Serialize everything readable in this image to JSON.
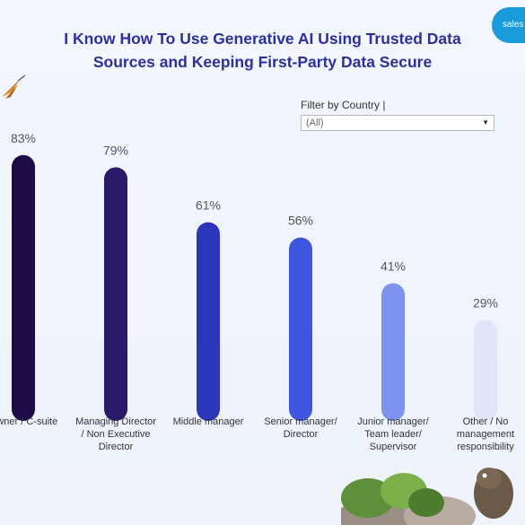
{
  "title_line1": "I Know How To Use Generative AI Using Trusted Data",
  "title_line2": "Sources and Keeping First-Party Data Secure",
  "logo_text": "sales",
  "filter": {
    "label": "Filter by Country |",
    "selected": "(All)"
  },
  "colors": {
    "title": "#2d2f9c",
    "bars": [
      "#1d0b46",
      "#2a1a69",
      "#2d35b8",
      "#3f56df",
      "#7d93ee",
      "#dfe4f8"
    ]
  },
  "chart_data": {
    "type": "bar",
    "categories": [
      "Owner / C-suite",
      "Managing Director / Non Executive Director",
      "Middle manager",
      "Senior manager/ Director",
      "Junior manager/ Team leader/ Supervisor",
      "Other / No management responsibility"
    ],
    "values": [
      83,
      79,
      61,
      56,
      41,
      29
    ],
    "value_labels": [
      "83%",
      "79%",
      "61%",
      "56%",
      "41%",
      "29%"
    ],
    "value_suffix": "%",
    "title": "I Know How To Use Generative AI Using Trusted Data Sources and Keeping First-Party Data Secure",
    "xlabel": "",
    "ylabel": "",
    "ylim": [
      0,
      100
    ],
    "grid": false
  }
}
